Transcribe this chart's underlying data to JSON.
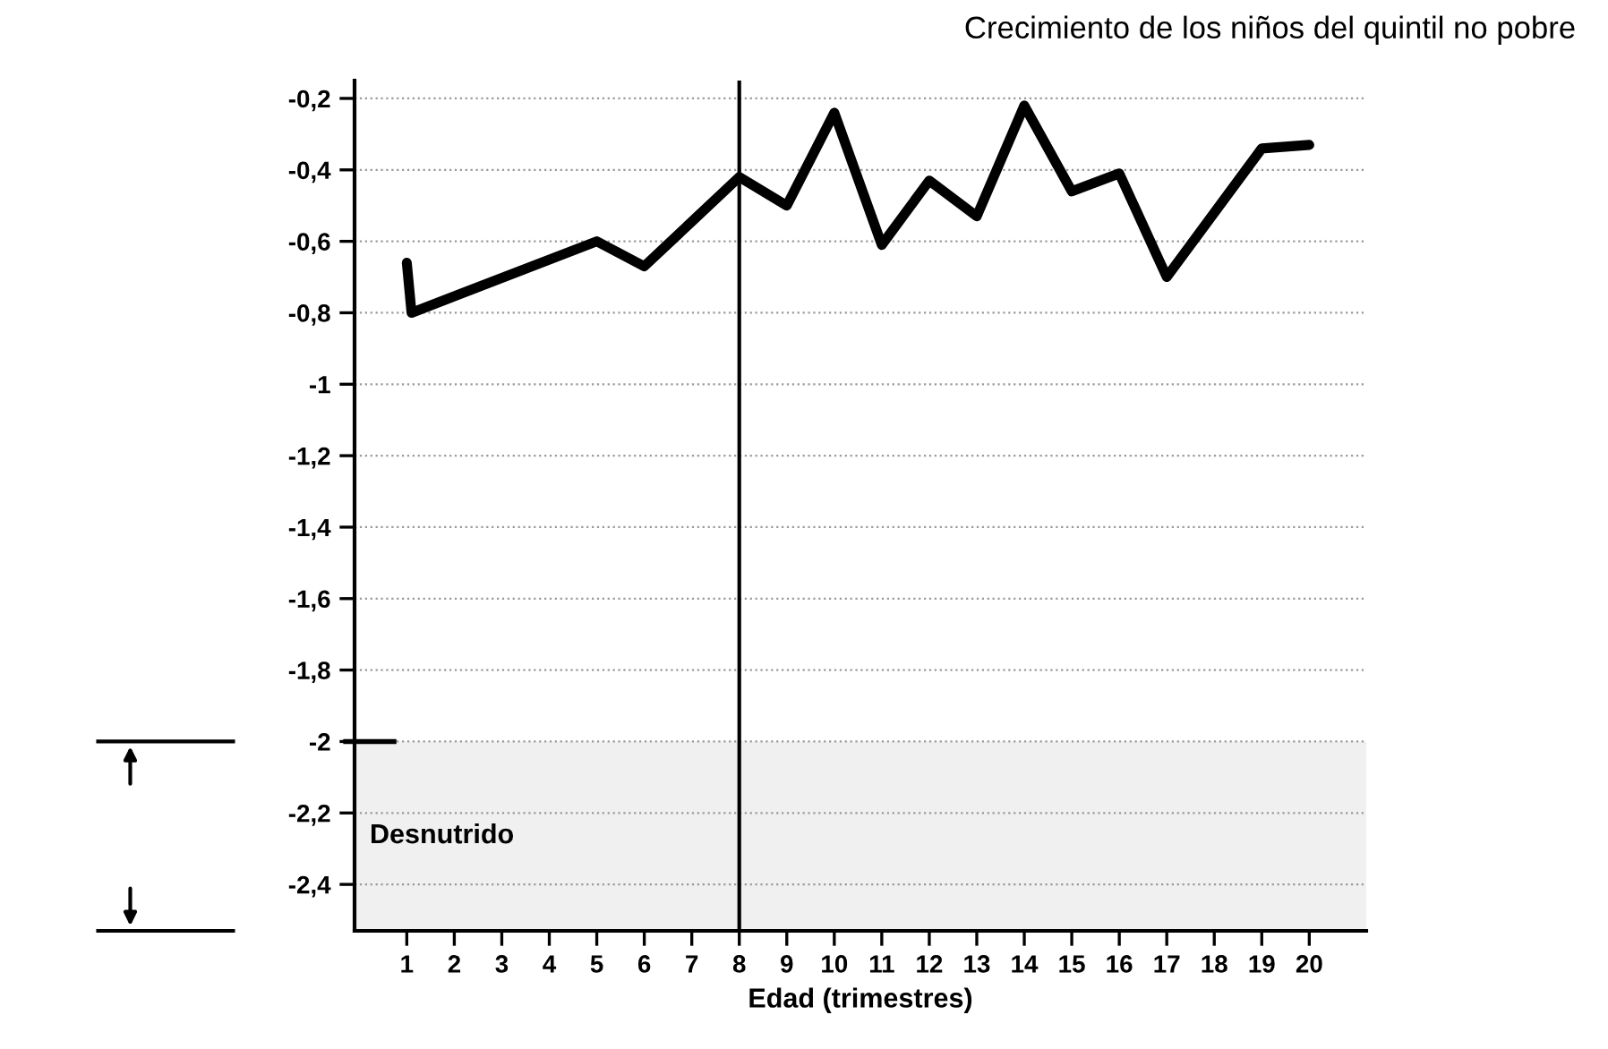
{
  "chart_data": {
    "type": "line",
    "title": "Crecimiento de los niños del quintil no pobre",
    "xlabel": "Edad (trimestres)",
    "x": [
      1,
      1.1,
      5,
      6,
      8,
      9,
      10,
      11,
      12,
      13,
      14,
      15,
      16,
      17,
      19,
      20
    ],
    "series": [
      {
        "color": "#000000",
        "values": [
          -0.66,
          -0.8,
          -0.6,
          -0.67,
          -0.42,
          -0.5,
          -0.24,
          -0.61,
          -0.43,
          -0.53,
          -0.22,
          -0.46,
          -0.41,
          -0.7,
          -0.34,
          -0.33
        ]
      }
    ],
    "xlim": [
      -0.1,
      21.2
    ],
    "ylim": [
      -2.53,
      -0.15
    ],
    "xticks": [
      1,
      2,
      3,
      4,
      5,
      6,
      7,
      8,
      9,
      10,
      11,
      12,
      13,
      14,
      15,
      16,
      17,
      18,
      19,
      20
    ],
    "yticks": [
      {
        "value": -0.2,
        "label": "-0,2"
      },
      {
        "value": -0.4,
        "label": "-0,4"
      },
      {
        "value": -0.6,
        "label": "-0,6"
      },
      {
        "value": -0.8,
        "label": "-0,8"
      },
      -1,
      {
        "value": -1.2,
        "label": "-1,2"
      },
      {
        "value": -1.4,
        "label": "-1,4"
      },
      {
        "value": -1.6,
        "label": "-1,6"
      },
      {
        "value": -1.8,
        "label": "-1,8"
      },
      -2,
      {
        "value": -2.2,
        "label": "-2,2"
      },
      {
        "value": -2.4,
        "label": "-2,4"
      }
    ],
    "ref_lines": [
      {
        "axis": "x",
        "value": 8,
        "color": "#000000"
      }
    ],
    "bands": [
      {
        "axis": "y",
        "from": -2,
        "to": -2.53,
        "label": "Desnutrido",
        "color": "#f0f0f0"
      }
    ],
    "grid": "y",
    "legend": false,
    "marker": "none",
    "line_style": "solid"
  }
}
